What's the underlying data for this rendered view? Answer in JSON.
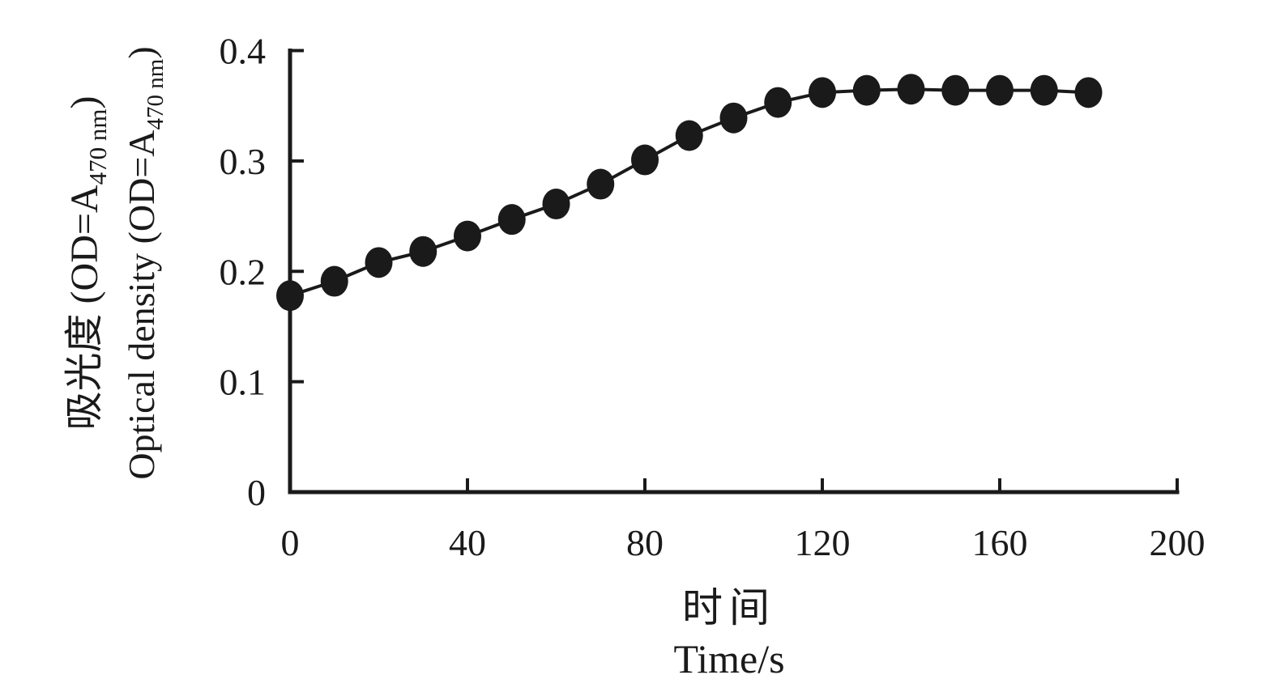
{
  "figure": {
    "background": "#ffffff",
    "ink_color": "#1a1a1a"
  },
  "chart_data": {
    "type": "line",
    "title": "",
    "legend": "none",
    "grid": false,
    "marker": "filled-circle",
    "line_color": "#1a1a1a",
    "marker_color": "#1a1a1a",
    "xlim": [
      0,
      200
    ],
    "ylim": [
      0,
      0.4
    ],
    "x_label": {
      "zh": "时间",
      "en": "Time/s"
    },
    "y_label": {
      "lines": [
        {
          "main": "吸光度 (OD=A",
          "sub": "470 nm",
          "tail": ")"
        },
        {
          "main": "Optical density (OD=A",
          "sub": "470 nm",
          "tail": ")"
        }
      ]
    },
    "x_ticks": [
      {
        "v": 0,
        "label": "0"
      },
      {
        "v": 40,
        "label": "40"
      },
      {
        "v": 80,
        "label": "80"
      },
      {
        "v": 120,
        "label": "120"
      },
      {
        "v": 160,
        "label": "160"
      },
      {
        "v": 200,
        "label": "200"
      }
    ],
    "y_ticks": [
      {
        "v": 0,
        "label": "0"
      },
      {
        "v": 0.1,
        "label": "0.1"
      },
      {
        "v": 0.2,
        "label": "0.2"
      },
      {
        "v": 0.3,
        "label": "0.3"
      },
      {
        "v": 0.4,
        "label": "0.4"
      }
    ],
    "series": [
      {
        "name": "optical-density-OD-A470nm",
        "x": [
          0,
          10,
          20,
          30,
          40,
          50,
          60,
          70,
          80,
          90,
          100,
          110,
          120,
          130,
          140,
          150,
          160,
          170,
          180
        ],
        "y": [
          0.178,
          0.191,
          0.208,
          0.218,
          0.232,
          0.247,
          0.261,
          0.279,
          0.301,
          0.323,
          0.339,
          0.353,
          0.362,
          0.364,
          0.365,
          0.364,
          0.364,
          0.364,
          0.362
        ]
      }
    ]
  }
}
